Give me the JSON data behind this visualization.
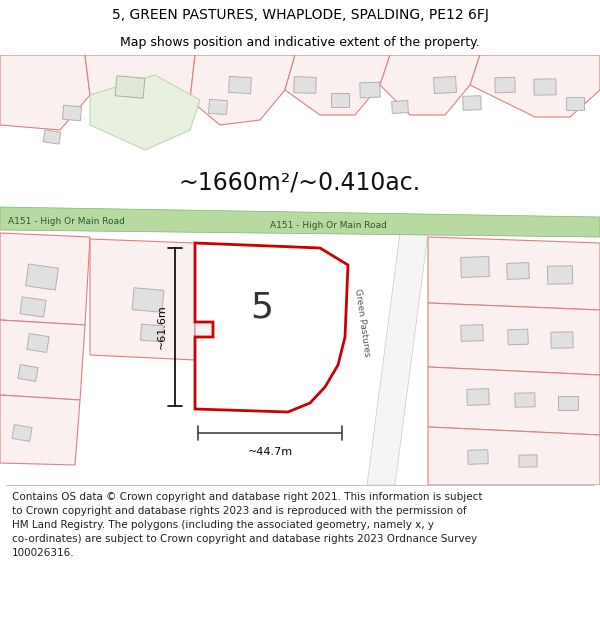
{
  "title_line1": "5, GREEN PASTURES, WHAPLODE, SPALDING, PE12 6FJ",
  "title_line2": "Map shows position and indicative extent of the property.",
  "area_text": "~1660m²/~0.410ac.",
  "road_label_left": "A151 - High Or Main Road",
  "road_label_right": "A151 - High Or Main Road",
  "road_label_diagonal": "Green Pastures",
  "property_number": "5",
  "dim_width": "~44.7m",
  "dim_height": "~61.6m",
  "footer_lines": [
    "Contains OS data © Crown copyright and database right 2021. This information is subject",
    "to Crown copyright and database rights 2023 and is reproduced with the permission of",
    "HM Land Registry. The polygons (including the associated geometry, namely x, y",
    "co-ordinates) are subject to Crown copyright and database rights 2023 Ordnance Survey",
    "100026316."
  ],
  "bg_color": "#ffffff",
  "map_bg": "#ffffff",
  "road_color": "#b8d9a0",
  "road_stroke": "#7ab87a",
  "property_outline_color": "#cc0000",
  "title_fontsize": 10,
  "subtitle_fontsize": 9,
  "area_fontsize": 17,
  "footer_fontsize": 7.5
}
